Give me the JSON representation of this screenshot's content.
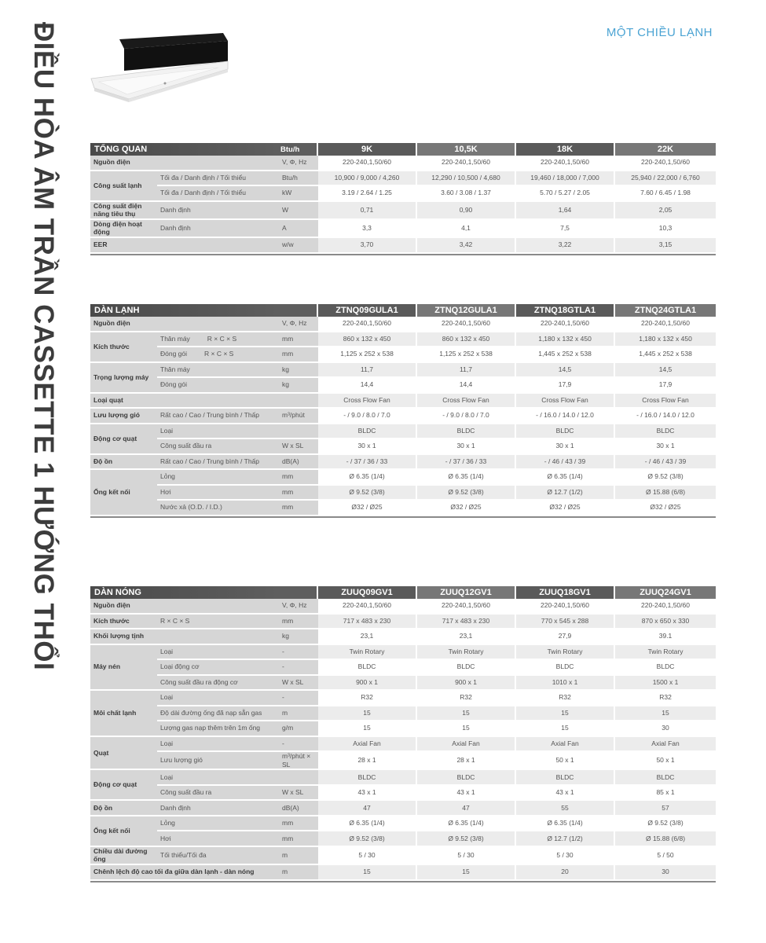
{
  "page_title": "ĐIỀU HÒA ÂM TRẦN CASSETTE 1 HƯỚNG THỔI",
  "mode_label": "MỘT CHIỀU LẠNH",
  "colors": {
    "accent": "#4aa3d3",
    "header_dark": "#4a4a4a",
    "label_bg": "#d6d6d6"
  },
  "tables": [
    {
      "title": "TỔNG QUAN",
      "unit_header": "Btu/h",
      "columns": [
        "9K",
        "10,5K",
        "18K",
        "22K"
      ],
      "groups": [
        {
          "label": "Nguồn điện",
          "rows": [
            {
              "sub": "",
              "unit": "V, Φ, Hz",
              "values": [
                "220-240,1,50/60",
                "220-240,1,50/60",
                "220-240,1,50/60",
                "220-240,1,50/60"
              ]
            }
          ]
        },
        {
          "label": "Công suất lạnh",
          "rows": [
            {
              "sub": "Tối đa / Danh định / Tối thiểu",
              "unit": "Btu/h",
              "values": [
                "10,900 / 9,000 / 4,260",
                "12,290 / 10,500 / 4,680",
                "19,460 / 18,000 / 7,000",
                "25,940 / 22,000 / 6,760"
              ]
            },
            {
              "sub": "Tối đa / Danh định / Tối thiểu",
              "unit": "kW",
              "values": [
                "3.19 / 2.64 / 1.25",
                "3.60 / 3.08 / 1.37",
                "5.70 / 5.27 / 2.05",
                "7.60 / 6.45 / 1.98"
              ]
            }
          ]
        },
        {
          "label": "Công suất điện năng tiêu thụ",
          "rows": [
            {
              "sub": "Danh định",
              "unit": "W",
              "values": [
                "0,71",
                "0,90",
                "1,64",
                "2,05"
              ]
            }
          ]
        },
        {
          "label": "Dòng điện hoạt động",
          "rows": [
            {
              "sub": "Danh định",
              "unit": "A",
              "values": [
                "3,3",
                "4,1",
                "7,5",
                "10,3"
              ]
            }
          ]
        },
        {
          "label": "EER",
          "rows": [
            {
              "sub": "",
              "unit": "w/w",
              "values": [
                "3,70",
                "3,42",
                "3,22",
                "3,15"
              ]
            }
          ]
        }
      ]
    },
    {
      "title": "DÀN LẠNH",
      "unit_header": "",
      "columns": [
        "ZTNQ09GULA1",
        "ZTNQ12GULA1",
        "ZTNQ18GTLA1",
        "ZTNQ24GTLA1"
      ],
      "groups": [
        {
          "label": "Nguồn điện",
          "rows": [
            {
              "sub": "",
              "unit": "V, Φ, Hz",
              "values": [
                "220-240,1,50/60",
                "220-240,1,50/60",
                "220-240,1,50/60",
                "220-240,1,50/60"
              ]
            }
          ]
        },
        {
          "label": "Kích thước",
          "rows": [
            {
              "sub": "Thân máy",
              "sub2": "R × C × S",
              "unit": "mm",
              "values": [
                "860 x 132 x 450",
                "860 x 132 x 450",
                "1,180 x 132 x 450",
                "1,180 x 132 x 450"
              ]
            },
            {
              "sub": "Đóng gói",
              "sub2": "R × C × S",
              "unit": "mm",
              "values": [
                "1,125 x 252 x 538",
                "1,125 x 252 x 538",
                "1,445 x 252 x 538",
                "1,445 x 252 x 538"
              ]
            }
          ]
        },
        {
          "label": "Trọng lượng máy",
          "rows": [
            {
              "sub": "Thân máy",
              "unit": "kg",
              "values": [
                "11,7",
                "11,7",
                "14,5",
                "14,5"
              ]
            },
            {
              "sub": "Đóng gói",
              "unit": "kg",
              "values": [
                "14,4",
                "14,4",
                "17,9",
                "17,9"
              ]
            }
          ]
        },
        {
          "label": "Loại quạt",
          "rows": [
            {
              "sub": "",
              "unit": "",
              "values": [
                "Cross Flow Fan",
                "Cross Flow Fan",
                "Cross Flow Fan",
                "Cross Flow Fan"
              ]
            }
          ]
        },
        {
          "label": "Lưu lượng gió",
          "rows": [
            {
              "sub": "Rất cao / Cao / Trung bình / Thấp",
              "unit": "m³/phút",
              "values": [
                "- / 9.0 / 8.0 / 7.0",
                "- / 9.0 / 8.0 / 7.0",
                "- / 16.0 / 14.0 / 12.0",
                "- / 16.0 / 14.0 / 12.0"
              ]
            }
          ]
        },
        {
          "label": "Động cơ quạt",
          "rows": [
            {
              "sub": "Loại",
              "unit": "",
              "values": [
                "BLDC",
                "BLDC",
                "BLDC",
                "BLDC"
              ]
            },
            {
              "sub": "Công suất đầu ra",
              "unit": "W x SL",
              "values": [
                "30 x 1",
                "30 x 1",
                "30 x 1",
                "30 x 1"
              ]
            }
          ]
        },
        {
          "label": "Độ ồn",
          "rows": [
            {
              "sub": "Rất cao / Cao / Trung bình / Thấp",
              "unit": "dB(A)",
              "values": [
                "- / 37 / 36 / 33",
                "- / 37 / 36 / 33",
                "- / 46 / 43 / 39",
                "- / 46 / 43 / 39"
              ]
            }
          ]
        },
        {
          "label": "Ống kết nối",
          "rows": [
            {
              "sub": "Lỏng",
              "unit": "mm",
              "values": [
                "Ø 6.35 (1/4)",
                "Ø 6.35 (1/4)",
                "Ø 6.35 (1/4)",
                "Ø 9.52 (3/8)"
              ]
            },
            {
              "sub": "Hơi",
              "unit": "mm",
              "values": [
                "Ø 9.52 (3/8)",
                "Ø 9.52 (3/8)",
                "Ø 12.7 (1/2)",
                "Ø 15.88 (6/8)"
              ]
            },
            {
              "sub": "Nước xả (O.D. / I.D.)",
              "unit": "mm",
              "values": [
                "Ø32 / Ø25",
                "Ø32 / Ø25",
                "Ø32 / Ø25",
                "Ø32 / Ø25"
              ]
            }
          ]
        }
      ]
    },
    {
      "title": "DÀN NÓNG",
      "unit_header": "",
      "columns": [
        "ZUUQ09GV1",
        "ZUUQ12GV1",
        "ZUUQ18GV1",
        "ZUUQ24GV1"
      ],
      "groups": [
        {
          "label": "Nguồn điện",
          "rows": [
            {
              "sub": "",
              "unit": "V, Φ, Hz",
              "values": [
                "220-240,1,50/60",
                "220-240,1,50/60",
                "220-240,1,50/60",
                "220-240,1,50/60"
              ]
            }
          ]
        },
        {
          "label": "Kích thước",
          "rows": [
            {
              "sub": "R × C × S",
              "unit": "mm",
              "values": [
                "717 x 483 x 230",
                "717 x 483 x 230",
                "770 x 545 x 288",
                "870 x 650 x 330"
              ]
            }
          ]
        },
        {
          "label": "Khối lượng tịnh",
          "rows": [
            {
              "sub": "",
              "unit": "kg",
              "values": [
                "23,1",
                "23,1",
                "27,9",
                "39.1"
              ]
            }
          ]
        },
        {
          "label": "Máy nén",
          "rows": [
            {
              "sub": "Loại",
              "unit": "-",
              "values": [
                "Twin Rotary",
                "Twin Rotary",
                "Twin Rotary",
                "Twin Rotary"
              ]
            },
            {
              "sub": "Loại động cơ",
              "unit": "-",
              "values": [
                "BLDC",
                "BLDC",
                "BLDC",
                "BLDC"
              ]
            },
            {
              "sub": "Công suất đầu ra động cơ",
              "unit": "W x SL",
              "values": [
                "900 x 1",
                "900 x 1",
                "1010 x 1",
                "1500 x 1"
              ]
            }
          ]
        },
        {
          "label": "Môi chất lạnh",
          "rows": [
            {
              "sub": "Loại",
              "unit": "-",
              "values": [
                "R32",
                "R32",
                "R32",
                "R32"
              ]
            },
            {
              "sub": "Độ dài đường ống đã nạp sẵn gas",
              "unit": "m",
              "values": [
                "15",
                "15",
                "15",
                "15"
              ]
            },
            {
              "sub": "Lượng gas nạp thêm trên 1m ống",
              "unit": "g/m",
              "values": [
                "15",
                "15",
                "15",
                "30"
              ]
            }
          ]
        },
        {
          "label": "Quạt",
          "rows": [
            {
              "sub": "Loại",
              "unit": "-",
              "values": [
                "Axial Fan",
                "Axial Fan",
                "Axial Fan",
                "Axial Fan"
              ]
            },
            {
              "sub": "Lưu lượng gió",
              "unit": "m³/phút × SL",
              "values": [
                "28 x 1",
                "28 x 1",
                "50 x 1",
                "50 x 1"
              ]
            }
          ]
        },
        {
          "label": "Động cơ quạt",
          "rows": [
            {
              "sub": "Loại",
              "unit": "",
              "values": [
                "BLDC",
                "BLDC",
                "BLDC",
                "BLDC"
              ]
            },
            {
              "sub": "Công suất đầu ra",
              "unit": "W x SL",
              "values": [
                "43 x 1",
                "43 x 1",
                "43 x 1",
                "85 x 1"
              ]
            }
          ]
        },
        {
          "label": "Độ ồn",
          "rows": [
            {
              "sub": "Danh định",
              "unit": "dB(A)",
              "values": [
                "47",
                "47",
                "55",
                "57"
              ]
            }
          ]
        },
        {
          "label": "Ống kết nối",
          "rows": [
            {
              "sub": "Lỏng",
              "unit": "mm",
              "values": [
                "Ø 6.35 (1/4)",
                "Ø 6.35 (1/4)",
                "Ø 6.35 (1/4)",
                "Ø 9.52 (3/8)"
              ]
            },
            {
              "sub": "Hơi",
              "unit": "mm",
              "values": [
                "Ø 9.52 (3/8)",
                "Ø 9.52 (3/8)",
                "Ø 12.7 (1/2)",
                "Ø 15.88 (6/8)"
              ]
            }
          ]
        },
        {
          "label": "Chiều dài đường ống",
          "rows": [
            {
              "sub": "Tối thiểu/Tối đa",
              "unit": "m",
              "values": [
                "5 / 30",
                "5 / 30",
                "5 / 30",
                "5 / 50"
              ]
            }
          ]
        },
        {
          "label": "Chênh lệch độ cao tối đa giữa dàn lạnh - dàn nóng",
          "wide": true,
          "rows": [
            {
              "sub": "",
              "unit": "m",
              "values": [
                "15",
                "15",
                "20",
                "30"
              ]
            }
          ]
        }
      ]
    }
  ]
}
